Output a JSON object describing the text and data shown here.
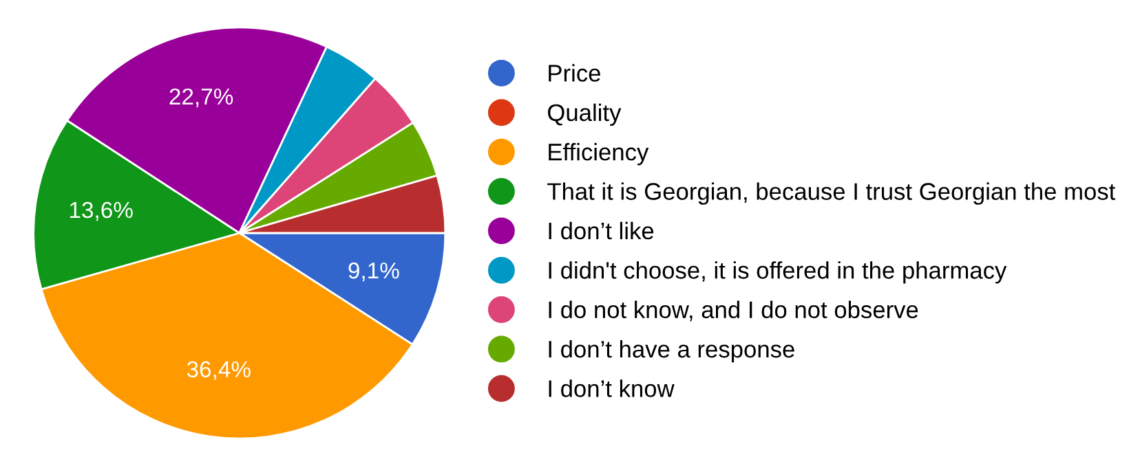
{
  "chart_data": {
    "type": "pie",
    "categories": [
      "Price",
      "Quality",
      "Efficiency",
      "That it is Georgian, because I trust Georgian the most",
      "I don’t like",
      "I didn't choose, it is offered in the pharmacy",
      "I do not know, and I do not observe",
      "I don’t have a response",
      "I don’t know"
    ],
    "values": [
      9.1,
      0,
      36.4,
      13.6,
      22.7,
      4.5,
      4.5,
      4.5,
      4.5
    ],
    "colors": [
      "#3366cc",
      "#dc3912",
      "#ff9900",
      "#109618",
      "#990099",
      "#0099c6",
      "#dd4477",
      "#66aa00",
      "#b82e2e"
    ],
    "value_labels": [
      "9,1%",
      null,
      "36,4%",
      "13,6%",
      "22,7%",
      null,
      null,
      null,
      null
    ],
    "legend": "right"
  }
}
